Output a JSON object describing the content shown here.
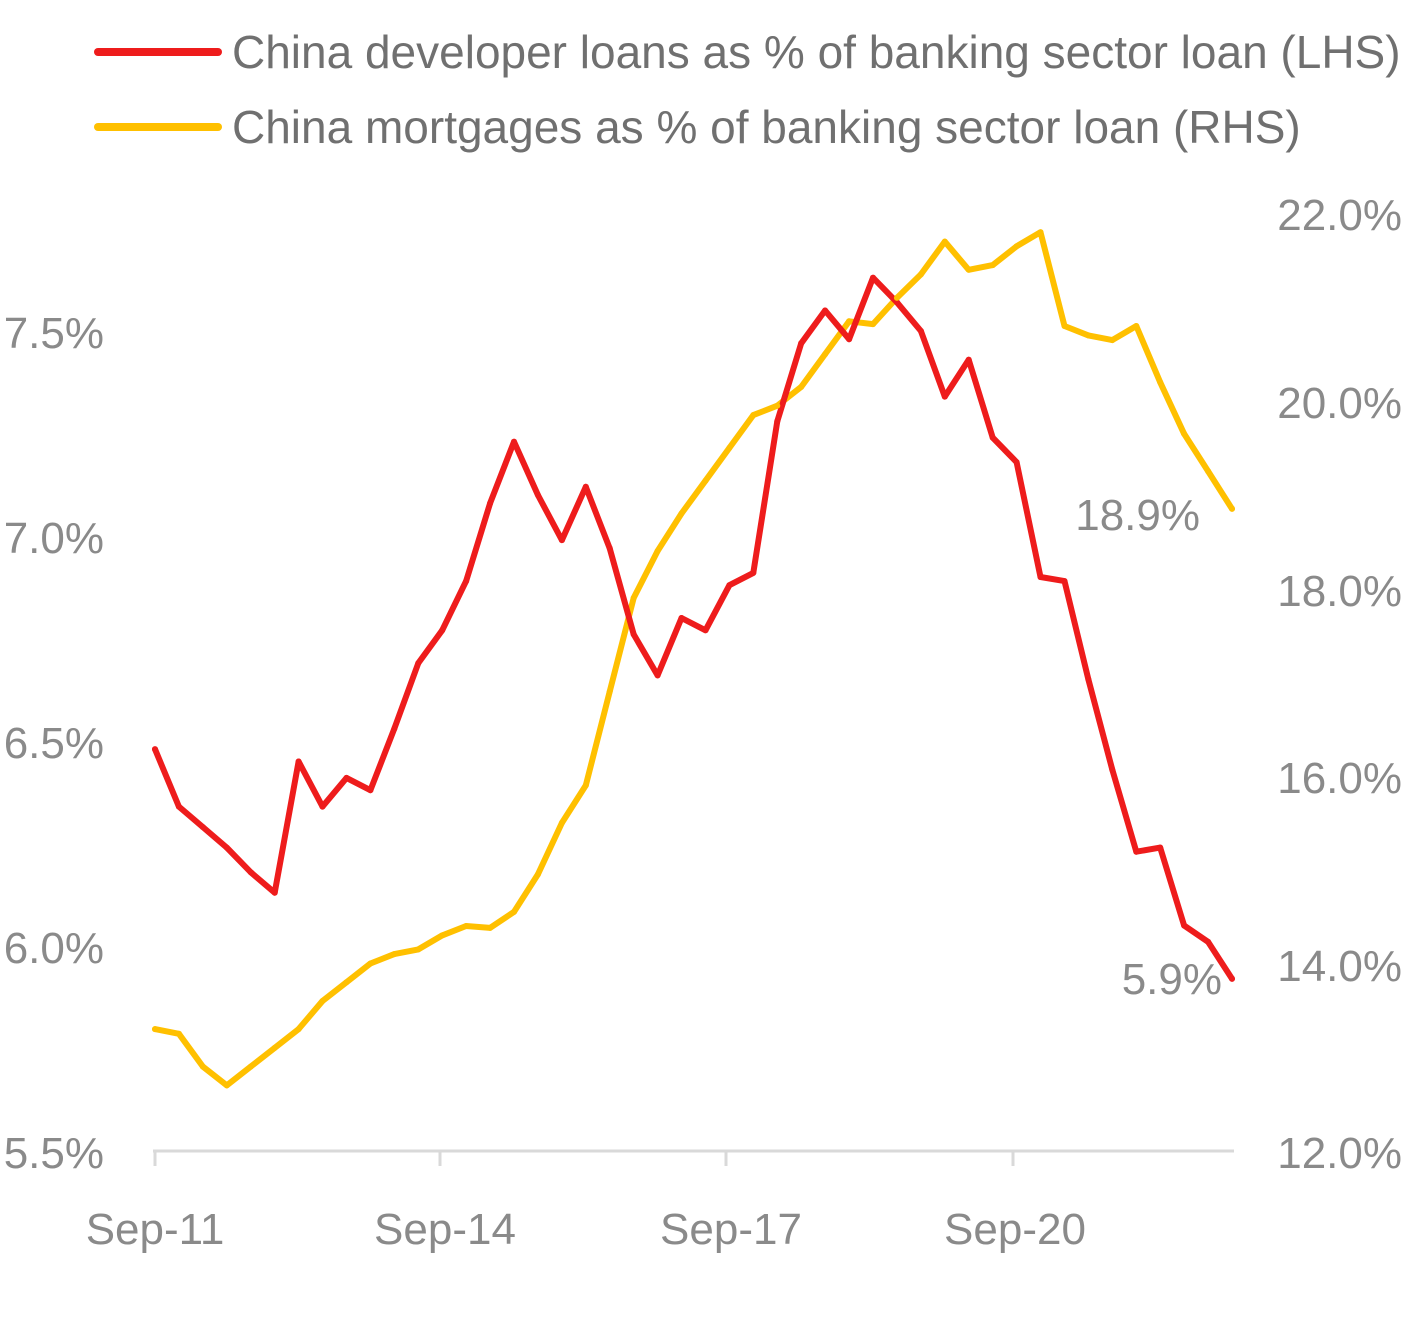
{
  "chart_data": {
    "type": "line",
    "title": "",
    "xlabel": "",
    "ylabel": "",
    "x_ticks": [
      "Sep-11",
      "Sep-14",
      "Sep-17",
      "Sep-20"
    ],
    "y_left": {
      "ticks": [
        "5.5%",
        "6.0%",
        "6.5%",
        "7.0%",
        "7.5%"
      ],
      "ylim": [
        5.5,
        7.75
      ]
    },
    "y_right": {
      "ticks": [
        "12.0%",
        "14.0%",
        "16.0%",
        "18.0%",
        "20.0%",
        "22.0%"
      ],
      "ylim": [
        12.0,
        22.0
      ]
    },
    "x": [
      "Sep-11",
      "Dec-11",
      "Mar-12",
      "Jun-12",
      "Sep-12",
      "Dec-12",
      "Mar-13",
      "Jun-13",
      "Sep-13",
      "Dec-13",
      "Mar-14",
      "Jun-14",
      "Sep-14",
      "Dec-14",
      "Mar-15",
      "Jun-15",
      "Sep-15",
      "Dec-15",
      "Mar-16",
      "Jun-16",
      "Sep-16",
      "Dec-16",
      "Mar-17",
      "Jun-17",
      "Sep-17",
      "Dec-17",
      "Mar-18",
      "Jun-18",
      "Sep-18",
      "Dec-18",
      "Mar-19",
      "Jun-19",
      "Sep-19",
      "Dec-19",
      "Mar-20",
      "Jun-20",
      "Sep-20",
      "Dec-20",
      "Mar-21",
      "Jun-21",
      "Sep-21",
      "Dec-21",
      "Mar-22",
      "Jun-22",
      "Sep-22",
      "Dec-22"
    ],
    "series": [
      {
        "name": "China developer loans as % of banking sector loan (LHS)",
        "axis": "left",
        "color": "#ee1c1c",
        "end_label": "5.9%",
        "values": [
          6.48,
          6.34,
          6.29,
          6.24,
          6.18,
          6.13,
          6.45,
          6.34,
          6.41,
          6.38,
          6.53,
          6.69,
          6.77,
          6.89,
          7.08,
          7.23,
          7.1,
          6.99,
          7.12,
          6.97,
          6.76,
          6.66,
          6.8,
          6.77,
          6.88,
          6.91,
          7.28,
          7.47,
          7.55,
          7.48,
          7.63,
          7.57,
          7.5,
          7.34,
          7.43,
          7.24,
          7.18,
          6.9,
          6.89,
          6.65,
          6.43,
          6.23,
          6.24,
          6.05,
          6.01,
          5.92
        ]
      },
      {
        "name": "China mortgages as % of banking sector loan (RHS)",
        "axis": "right",
        "color": "#ffc000",
        "end_label": "18.9%",
        "values": [
          13.3,
          13.25,
          12.9,
          12.7,
          12.9,
          13.1,
          13.3,
          13.6,
          13.8,
          14.0,
          14.1,
          14.15,
          14.3,
          14.4,
          14.38,
          14.55,
          14.95,
          15.5,
          15.9,
          16.9,
          17.9,
          18.4,
          18.8,
          19.15,
          19.5,
          19.85,
          19.95,
          20.15,
          20.5,
          20.85,
          20.82,
          21.1,
          21.35,
          21.7,
          21.4,
          21.45,
          21.65,
          21.8,
          20.8,
          20.7,
          20.65,
          20.8,
          20.2,
          19.65,
          19.25,
          18.85
        ]
      }
    ]
  }
}
